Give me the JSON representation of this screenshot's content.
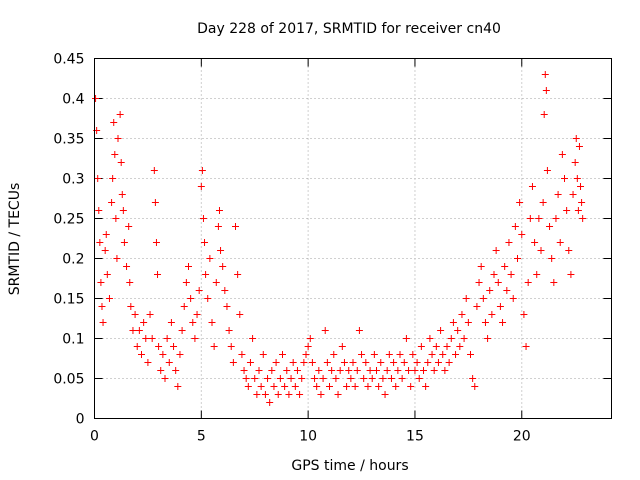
{
  "chart_data": {
    "type": "scatter",
    "title": "Day 228 of 2017, SRMTID for receiver cn40",
    "xlabel": "GPS time / hours",
    "ylabel": "SRMTID / TECUs",
    "xlim": [
      0,
      24.2
    ],
    "ylim": [
      0,
      0.45
    ],
    "xticks": [
      0,
      5,
      10,
      15,
      20
    ],
    "xtick_labels": [
      "0",
      "5",
      "10",
      "15",
      "20"
    ],
    "yticks": [
      0,
      0.05,
      0.1,
      0.15,
      0.2,
      0.25,
      0.3,
      0.35,
      0.4,
      0.45
    ],
    "ytick_labels": [
      "0",
      "0.05",
      "0.1",
      "0.15",
      "0.2",
      "0.25",
      "0.3",
      "0.35",
      "0.4",
      "0.45"
    ],
    "grid": true,
    "marker": "+",
    "color": "#ff0000",
    "series": [
      {
        "name": "SRMTID",
        "points": [
          [
            0.05,
            0.4
          ],
          [
            0.1,
            0.36
          ],
          [
            0.15,
            0.3
          ],
          [
            0.2,
            0.26
          ],
          [
            0.25,
            0.22
          ],
          [
            0.3,
            0.17
          ],
          [
            0.35,
            0.14
          ],
          [
            0.4,
            0.12
          ],
          [
            0.5,
            0.21
          ],
          [
            0.55,
            0.23
          ],
          [
            0.6,
            0.18
          ],
          [
            0.7,
            0.15
          ],
          [
            0.8,
            0.27
          ],
          [
            0.85,
            0.3
          ],
          [
            0.9,
            0.37
          ],
          [
            0.95,
            0.33
          ],
          [
            1.0,
            0.25
          ],
          [
            1.05,
            0.2
          ],
          [
            1.1,
            0.35
          ],
          [
            1.2,
            0.38
          ],
          [
            1.25,
            0.32
          ],
          [
            1.3,
            0.28
          ],
          [
            1.35,
            0.26
          ],
          [
            1.4,
            0.22
          ],
          [
            1.5,
            0.19
          ],
          [
            1.6,
            0.24
          ],
          [
            1.65,
            0.17
          ],
          [
            1.7,
            0.14
          ],
          [
            1.8,
            0.11
          ],
          [
            1.9,
            0.13
          ],
          [
            2.0,
            0.09
          ],
          [
            2.1,
            0.11
          ],
          [
            2.2,
            0.08
          ],
          [
            2.3,
            0.12
          ],
          [
            2.4,
            0.1
          ],
          [
            2.5,
            0.07
          ],
          [
            2.6,
            0.13
          ],
          [
            2.7,
            0.1
          ],
          [
            2.8,
            0.31
          ],
          [
            2.85,
            0.27
          ],
          [
            2.9,
            0.22
          ],
          [
            2.95,
            0.18
          ],
          [
            3.0,
            0.09
          ],
          [
            3.1,
            0.06
          ],
          [
            3.2,
            0.08
          ],
          [
            3.3,
            0.05
          ],
          [
            3.4,
            0.1
          ],
          [
            3.5,
            0.07
          ],
          [
            3.6,
            0.12
          ],
          [
            3.7,
            0.09
          ],
          [
            3.8,
            0.06
          ],
          [
            3.9,
            0.04
          ],
          [
            4.0,
            0.08
          ],
          [
            4.1,
            0.11
          ],
          [
            4.2,
            0.14
          ],
          [
            4.3,
            0.17
          ],
          [
            4.4,
            0.19
          ],
          [
            4.5,
            0.15
          ],
          [
            4.6,
            0.12
          ],
          [
            4.7,
            0.1
          ],
          [
            4.8,
            0.13
          ],
          [
            4.9,
            0.16
          ],
          [
            5.0,
            0.29
          ],
          [
            5.05,
            0.31
          ],
          [
            5.1,
            0.25
          ],
          [
            5.15,
            0.22
          ],
          [
            5.2,
            0.18
          ],
          [
            5.3,
            0.15
          ],
          [
            5.4,
            0.2
          ],
          [
            5.5,
            0.12
          ],
          [
            5.6,
            0.09
          ],
          [
            5.7,
            0.17
          ],
          [
            5.8,
            0.24
          ],
          [
            5.85,
            0.26
          ],
          [
            5.9,
            0.21
          ],
          [
            6.0,
            0.19
          ],
          [
            6.1,
            0.16
          ],
          [
            6.2,
            0.14
          ],
          [
            6.3,
            0.11
          ],
          [
            6.4,
            0.09
          ],
          [
            6.5,
            0.07
          ],
          [
            6.6,
            0.24
          ],
          [
            6.7,
            0.18
          ],
          [
            6.8,
            0.13
          ],
          [
            6.9,
            0.08
          ],
          [
            7.0,
            0.06
          ],
          [
            7.1,
            0.05
          ],
          [
            7.2,
            0.04
          ],
          [
            7.3,
            0.07
          ],
          [
            7.4,
            0.1
          ],
          [
            7.5,
            0.05
          ],
          [
            7.6,
            0.03
          ],
          [
            7.7,
            0.06
          ],
          [
            7.8,
            0.04
          ],
          [
            7.9,
            0.08
          ],
          [
            8.0,
            0.03
          ],
          [
            8.1,
            0.05
          ],
          [
            8.2,
            0.02
          ],
          [
            8.3,
            0.06
          ],
          [
            8.4,
            0.04
          ],
          [
            8.5,
            0.07
          ],
          [
            8.6,
            0.03
          ],
          [
            8.7,
            0.05
          ],
          [
            8.8,
            0.08
          ],
          [
            8.9,
            0.04
          ],
          [
            9.0,
            0.06
          ],
          [
            9.1,
            0.03
          ],
          [
            9.2,
            0.05
          ],
          [
            9.3,
            0.07
          ],
          [
            9.4,
            0.04
          ],
          [
            9.5,
            0.06
          ],
          [
            9.6,
            0.03
          ],
          [
            9.7,
            0.05
          ],
          [
            9.8,
            0.07
          ],
          [
            9.9,
            0.08
          ],
          [
            10.0,
            0.09
          ],
          [
            10.1,
            0.1
          ],
          [
            10.2,
            0.07
          ],
          [
            10.3,
            0.05
          ],
          [
            10.4,
            0.04
          ],
          [
            10.5,
            0.06
          ],
          [
            10.6,
            0.03
          ],
          [
            10.7,
            0.05
          ],
          [
            10.8,
            0.11
          ],
          [
            10.9,
            0.07
          ],
          [
            11.0,
            0.04
          ],
          [
            11.1,
            0.06
          ],
          [
            11.2,
            0.08
          ],
          [
            11.3,
            0.05
          ],
          [
            11.4,
            0.03
          ],
          [
            11.5,
            0.06
          ],
          [
            11.6,
            0.09
          ],
          [
            11.7,
            0.07
          ],
          [
            11.8,
            0.04
          ],
          [
            11.9,
            0.06
          ],
          [
            12.0,
            0.05
          ],
          [
            12.1,
            0.07
          ],
          [
            12.2,
            0.04
          ],
          [
            12.3,
            0.06
          ],
          [
            12.4,
            0.11
          ],
          [
            12.5,
            0.08
          ],
          [
            12.6,
            0.05
          ],
          [
            12.7,
            0.07
          ],
          [
            12.8,
            0.04
          ],
          [
            12.9,
            0.06
          ],
          [
            13.0,
            0.05
          ],
          [
            13.1,
            0.08
          ],
          [
            13.2,
            0.06
          ],
          [
            13.3,
            0.04
          ],
          [
            13.4,
            0.07
          ],
          [
            13.5,
            0.05
          ],
          [
            13.6,
            0.03
          ],
          [
            13.7,
            0.06
          ],
          [
            13.8,
            0.08
          ],
          [
            13.9,
            0.05
          ],
          [
            14.0,
            0.07
          ],
          [
            14.1,
            0.04
          ],
          [
            14.2,
            0.06
          ],
          [
            14.3,
            0.08
          ],
          [
            14.4,
            0.05
          ],
          [
            14.5,
            0.07
          ],
          [
            14.6,
            0.1
          ],
          [
            14.7,
            0.06
          ],
          [
            14.8,
            0.04
          ],
          [
            14.9,
            0.08
          ],
          [
            15.0,
            0.06
          ],
          [
            15.1,
            0.07
          ],
          [
            15.2,
            0.05
          ],
          [
            15.3,
            0.09
          ],
          [
            15.4,
            0.06
          ],
          [
            15.5,
            0.04
          ],
          [
            15.6,
            0.07
          ],
          [
            15.7,
            0.1
          ],
          [
            15.8,
            0.08
          ],
          [
            15.9,
            0.06
          ],
          [
            16.0,
            0.09
          ],
          [
            16.1,
            0.07
          ],
          [
            16.2,
            0.11
          ],
          [
            16.3,
            0.08
          ],
          [
            16.4,
            0.06
          ],
          [
            16.5,
            0.09
          ],
          [
            16.6,
            0.07
          ],
          [
            16.7,
            0.1
          ],
          [
            16.8,
            0.12
          ],
          [
            16.9,
            0.08
          ],
          [
            17.0,
            0.11
          ],
          [
            17.1,
            0.09
          ],
          [
            17.2,
            0.13
          ],
          [
            17.3,
            0.1
          ],
          [
            17.4,
            0.15
          ],
          [
            17.5,
            0.12
          ],
          [
            17.6,
            0.08
          ],
          [
            17.7,
            0.05
          ],
          [
            17.8,
            0.04
          ],
          [
            17.9,
            0.14
          ],
          [
            18.0,
            0.17
          ],
          [
            18.1,
            0.19
          ],
          [
            18.2,
            0.15
          ],
          [
            18.3,
            0.12
          ],
          [
            18.4,
            0.1
          ],
          [
            18.5,
            0.16
          ],
          [
            18.6,
            0.13
          ],
          [
            18.7,
            0.18
          ],
          [
            18.8,
            0.21
          ],
          [
            18.9,
            0.17
          ],
          [
            19.0,
            0.14
          ],
          [
            19.1,
            0.12
          ],
          [
            19.2,
            0.19
          ],
          [
            19.3,
            0.16
          ],
          [
            19.4,
            0.22
          ],
          [
            19.5,
            0.18
          ],
          [
            19.6,
            0.15
          ],
          [
            19.7,
            0.24
          ],
          [
            19.8,
            0.2
          ],
          [
            19.9,
            0.27
          ],
          [
            20.0,
            0.23
          ],
          [
            20.1,
            0.13
          ],
          [
            20.2,
            0.09
          ],
          [
            20.3,
            0.17
          ],
          [
            20.4,
            0.25
          ],
          [
            20.5,
            0.29
          ],
          [
            20.6,
            0.22
          ],
          [
            20.7,
            0.18
          ],
          [
            20.8,
            0.25
          ],
          [
            20.9,
            0.21
          ],
          [
            21.0,
            0.27
          ],
          [
            21.05,
            0.38
          ],
          [
            21.1,
            0.43
          ],
          [
            21.15,
            0.41
          ],
          [
            21.2,
            0.31
          ],
          [
            21.3,
            0.24
          ],
          [
            21.4,
            0.2
          ],
          [
            21.5,
            0.17
          ],
          [
            21.6,
            0.25
          ],
          [
            21.7,
            0.28
          ],
          [
            21.8,
            0.22
          ],
          [
            21.9,
            0.33
          ],
          [
            22.0,
            0.3
          ],
          [
            22.1,
            0.26
          ],
          [
            22.2,
            0.21
          ],
          [
            22.3,
            0.18
          ],
          [
            22.4,
            0.28
          ],
          [
            22.5,
            0.32
          ],
          [
            22.55,
            0.35
          ],
          [
            22.6,
            0.3
          ],
          [
            22.65,
            0.26
          ],
          [
            22.7,
            0.34
          ],
          [
            22.75,
            0.29
          ],
          [
            22.8,
            0.27
          ],
          [
            22.85,
            0.25
          ]
        ]
      }
    ]
  }
}
